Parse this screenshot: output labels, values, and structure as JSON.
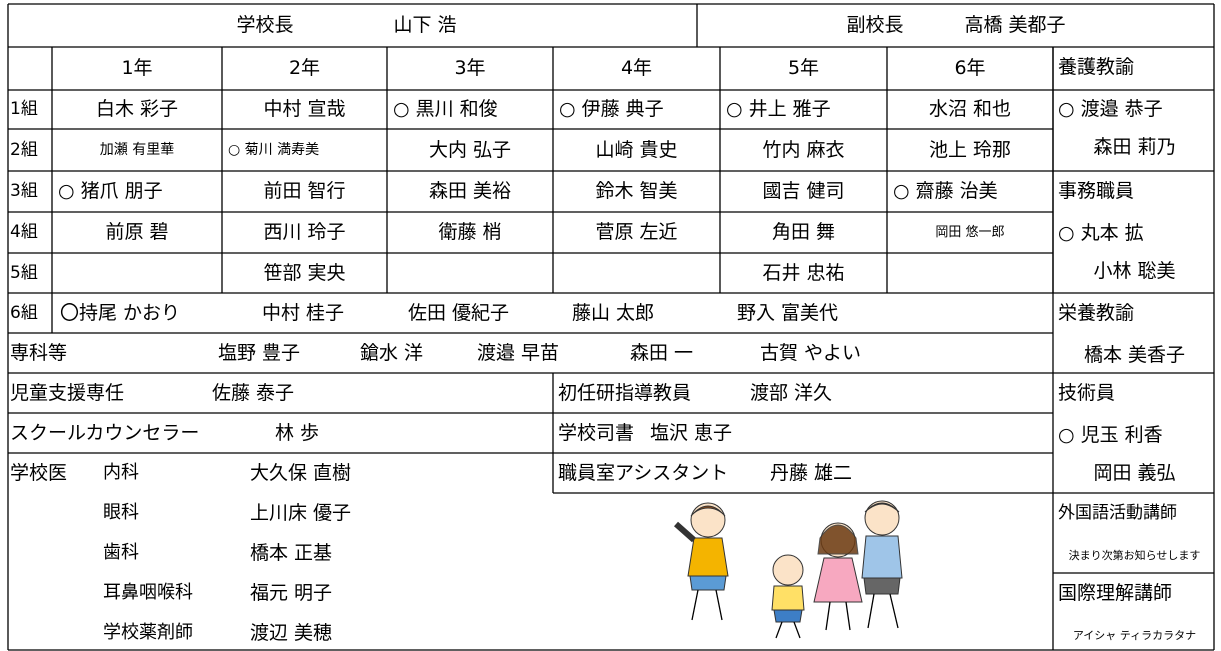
{
  "header": {
    "principal": {
      "role": "学校長",
      "name": "山下 浩"
    },
    "vice_principal": {
      "role": "副校長",
      "name": "高橋 美都子"
    }
  },
  "grades": [
    "1年",
    "2年",
    "3年",
    "4年",
    "5年",
    "6年"
  ],
  "classes": [
    {
      "label": "1組",
      "teachers": [
        "白木 彩子",
        "中村 宣哉",
        "○ 黒川 和俊",
        "○ 伊藤 典子",
        "○ 井上 雅子",
        "水沼 和也"
      ]
    },
    {
      "label": "2組",
      "teachers": [
        "加瀬 有里華",
        "○ 菊川 満寿美",
        "大内 弘子",
        "山崎 貴史",
        "竹内 麻衣",
        "池上 玲那"
      ]
    },
    {
      "label": "3組",
      "teachers": [
        "○ 猪爪 朋子",
        "前田 智行",
        "森田 美裕",
        "鈴木 智美",
        "國吉 健司",
        "○ 齋藤 治美"
      ]
    },
    {
      "label": "4組",
      "teachers": [
        "前原 碧",
        "西川 玲子",
        "衛藤 梢",
        "菅原 左近",
        "角田 舞",
        "岡田 悠一郎"
      ]
    },
    {
      "label": "5組",
      "teachers": [
        null,
        "笹部 実央",
        null,
        null,
        "石井 忠祐",
        null
      ]
    }
  ],
  "class6": {
    "label": "6組",
    "teachers": [
      "〇持尾 かおり",
      "中村 桂子",
      "佐田 優紀子",
      "藤山 太郎",
      "野入 富美代"
    ]
  },
  "specialists": {
    "label": "専科等",
    "names": [
      "塩野 豊子",
      "鎗水 洋",
      "渡邉 早苗",
      "森田 一",
      "古賀 やよい"
    ]
  },
  "staff": [
    {
      "role": "児童支援専任",
      "name": "佐藤 泰子"
    },
    {
      "role": "スクールカウンセラー",
      "name": "林 歩"
    },
    {
      "role": "初任研指導教員",
      "name": "渡部 洋久"
    },
    {
      "role": "学校司書",
      "name": "塩沢 恵子"
    },
    {
      "role": "職員室アシスタント",
      "name": "丹藤 雄二"
    }
  ],
  "school_doctors": {
    "label": "学校医",
    "entries": [
      {
        "field": "内科",
        "name": "大久保 直樹"
      },
      {
        "field": "眼科",
        "name": "上川床 優子"
      },
      {
        "field": "歯科",
        "name": "橋本 正基"
      },
      {
        "field": "耳鼻咽喉科",
        "name": "福元 明子"
      },
      {
        "field": "学校薬剤師",
        "name": "渡辺 美穂"
      }
    ]
  },
  "side": [
    {
      "role": "養護教諭",
      "names": [
        "○ 渡邉 恭子",
        "森田 莉乃"
      ]
    },
    {
      "role": "事務職員",
      "names": [
        "○ 丸本 拡",
        "小林 聡美"
      ]
    },
    {
      "role": "栄養教諭",
      "names": [
        "橋本 美香子"
      ]
    },
    {
      "role": "技術員",
      "names": [
        "○ 児玉 利香",
        "岡田 義弘"
      ]
    },
    {
      "role": "外国語活動講師",
      "names": [
        "決まり次第お知らせします"
      ]
    },
    {
      "role": "国際理解講師",
      "names": [
        "アイシャ ティラカラタナ"
      ]
    }
  ]
}
